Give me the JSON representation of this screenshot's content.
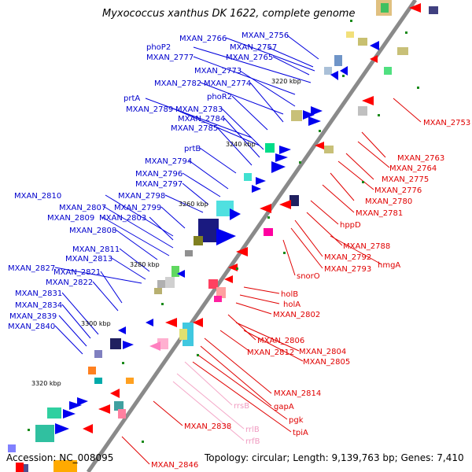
{
  "title": "Myxococcus xanthus DK 1622, complete genome",
  "footer": {
    "accession": "Accession: NC_008095",
    "topology": "Topology: circular; Length: 9,139,763 bp; Genes: 7,410"
  },
  "scale_ticks": [
    "3220 kbp",
    "3240 kbp",
    "3260 kbp",
    "3280 kbp",
    "3300 kbp",
    "3320 kbp"
  ],
  "colors": {
    "forward_label": "#0000cc",
    "reverse_label": "#e00000",
    "rna_label": "#f0a0c0",
    "backbone": "#888888"
  },
  "labels_forward": [
    "MXAN_2756",
    "MXAN_2766",
    "MXAN_2757",
    "phoP2",
    "MXAN_2765",
    "MXAN_2777",
    "MXAN_2773",
    "MXAN_2782",
    "MXAN_2774",
    "phoR2",
    "prtA",
    "MXAN_2789",
    "MXAN_2783",
    "MXAN_2784",
    "MXAN_2785",
    "prtB",
    "MXAN_2794",
    "MXAN_2796",
    "MXAN_2797",
    "MXAN_2810",
    "MXAN_2798",
    "MXAN_2807",
    "MXAN_2799",
    "MXAN_2809",
    "MXAN_2803",
    "MXAN_2808",
    "MXAN_2811",
    "MXAN_2813",
    "MXAN_2827",
    "MXAN_2821",
    "MXAN_2822",
    "MXAN_2831",
    "MXAN_2834",
    "MXAN_2839",
    "MXAN_2840"
  ],
  "labels_reverse": [
    "MXAN_2753",
    "MXAN_2763",
    "MXAN_2764",
    "MXAN_2775",
    "MXAN_2776",
    "MXAN_2780",
    "MXAN_2781",
    "hppD",
    "MXAN_2788",
    "MXAN_2792",
    "hmgA",
    "MXAN_2793",
    "snorO",
    "holB",
    "holA",
    "MXAN_2802",
    "MXAN_2806",
    "MXAN_2804",
    "MXAN_2812",
    "MXAN_2805",
    "MXAN_2814",
    "gapA",
    "pgk",
    "tpiA",
    "MXAN_2838",
    "MXAN_2846"
  ],
  "labels_rna": [
    "rrsB",
    "rrlB",
    "rrfB"
  ]
}
